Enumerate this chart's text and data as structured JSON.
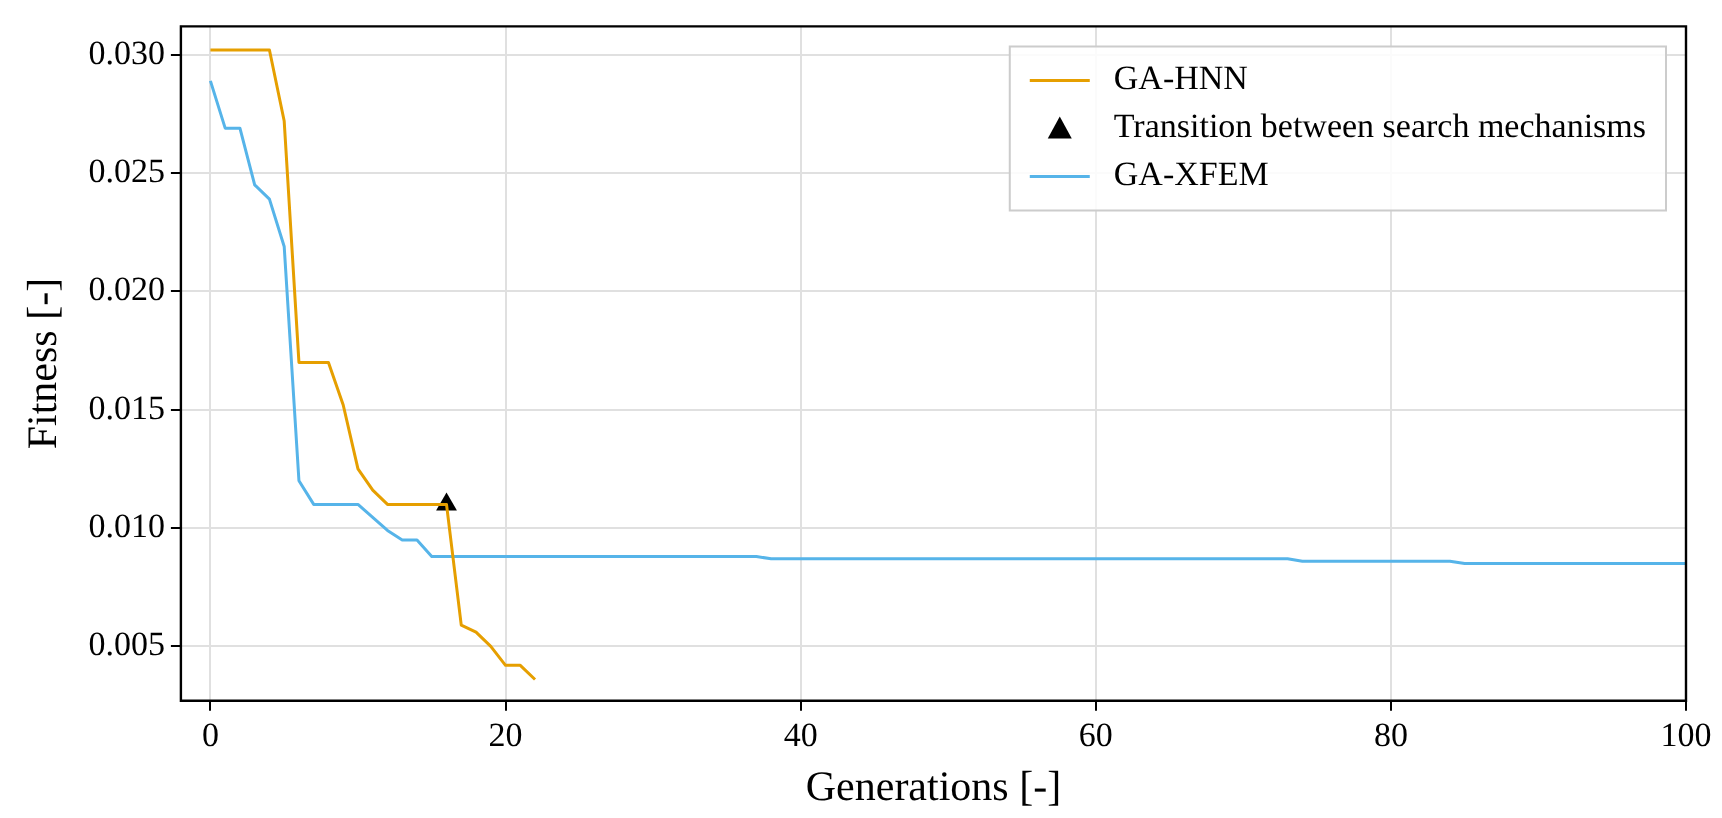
{
  "chart_data": {
    "type": "line",
    "xlabel": "Generations [-]",
    "ylabel": "Fitness [-]",
    "xlim": [
      -2,
      100
    ],
    "ylim": [
      0.0027,
      0.0312
    ],
    "xticks": [
      0,
      20,
      40,
      60,
      80,
      100
    ],
    "yticks": [
      {
        "value": 0.005,
        "label": "0.005"
      },
      {
        "value": 0.01,
        "label": "0.010"
      },
      {
        "value": 0.015,
        "label": "0.015"
      },
      {
        "value": 0.02,
        "label": "0.020"
      },
      {
        "value": 0.025,
        "label": "0.025"
      },
      {
        "value": 0.03,
        "label": "0.030"
      }
    ],
    "grid": true,
    "legend": "top right",
    "line_style": "solid",
    "series": [
      {
        "name": "GA-HNN",
        "color": "#e69f00",
        "marker": "none",
        "x": [
          0,
          4,
          5,
          6,
          8,
          9,
          10,
          11,
          12,
          16,
          17,
          18,
          19,
          20,
          21,
          22
        ],
        "values": [
          0.0302,
          0.0302,
          0.0272,
          0.017,
          0.017,
          0.0152,
          0.0125,
          0.0116,
          0.011,
          0.011,
          0.0059,
          0.0056,
          0.005,
          0.0042,
          0.0042,
          0.0036
        ]
      },
      {
        "name": "Transition between search mechanisms",
        "type": "scatter",
        "color": "#000000",
        "marker": "triangle",
        "x": [
          16
        ],
        "values": [
          0.011
        ]
      },
      {
        "name": "GA-XFEM",
        "color": "#56b4e9",
        "marker": "none",
        "x": [
          0,
          1,
          2,
          3,
          4,
          5,
          6,
          7,
          10,
          12,
          13,
          14,
          15,
          37,
          38,
          73,
          74,
          84,
          85,
          100
        ],
        "values": [
          0.0289,
          0.0269,
          0.0269,
          0.0245,
          0.0239,
          0.0219,
          0.012,
          0.011,
          0.011,
          0.0099,
          0.0095,
          0.0095,
          0.0088,
          0.0088,
          0.0087,
          0.0087,
          0.0086,
          0.0086,
          0.0085,
          0.0085
        ]
      }
    ]
  }
}
